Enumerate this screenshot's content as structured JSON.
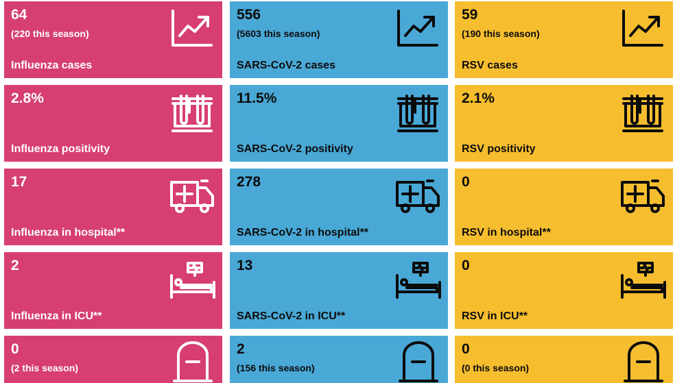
{
  "colors": {
    "influenza": "#d63f70",
    "sars_cov_2": "#49a8d6",
    "rsv": "#f6be2f"
  },
  "cards": {
    "flu_cases": {
      "value": "64",
      "sub": "(220 this season)",
      "label": "Influenza cases",
      "icon": "trend-chart-icon"
    },
    "cov_cases": {
      "value": "556",
      "sub": "(5603 this season)",
      "label": "SARS-CoV-2 cases",
      "icon": "trend-chart-icon"
    },
    "rsv_cases": {
      "value": "59",
      "sub": "(190 this season)",
      "label": "RSV cases",
      "icon": "trend-chart-icon"
    },
    "flu_positivity": {
      "value": "2.8%",
      "label": "Influenza positivity",
      "icon": "test-tubes-icon"
    },
    "cov_positivity": {
      "value": "11.5%",
      "label": "SARS-CoV-2 positivity",
      "icon": "test-tubes-icon"
    },
    "rsv_positivity": {
      "value": "2.1%",
      "label": "RSV positivity",
      "icon": "test-tubes-icon"
    },
    "flu_hospital": {
      "value": "17",
      "label": "Influenza in hospital**",
      "icon": "ambulance-icon"
    },
    "cov_hospital": {
      "value": "278",
      "label": "SARS-CoV-2 in hospital**",
      "icon": "ambulance-icon"
    },
    "rsv_hospital": {
      "value": "0",
      "label": "RSV in hospital**",
      "icon": "ambulance-icon"
    },
    "flu_icu": {
      "value": "2",
      "label": "Influenza in ICU**",
      "icon": "hospital-bed-icon"
    },
    "cov_icu": {
      "value": "13",
      "label": "SARS-CoV-2 in ICU**",
      "icon": "hospital-bed-icon"
    },
    "rsv_icu": {
      "value": "0",
      "label": "RSV in ICU**",
      "icon": "hospital-bed-icon"
    },
    "flu_deaths": {
      "value": "0",
      "sub": "(2 this season)",
      "icon": "gravestone-icon"
    },
    "cov_deaths": {
      "value": "2",
      "sub": "(156 this season)",
      "icon": "gravestone-icon"
    },
    "rsv_deaths": {
      "value": "0",
      "sub": "(0 this season)",
      "icon": "gravestone-icon"
    }
  }
}
